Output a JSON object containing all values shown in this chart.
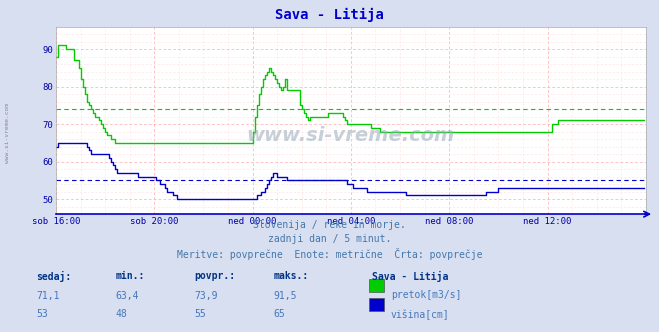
{
  "title": "Sava - Litija",
  "title_color": "#0000cc",
  "bg_color": "#d8dff0",
  "plot_bg_color": "#ffffff",
  "grid_color_major": "#ffaaaa",
  "grid_color_minor": "#ffdddd",
  "text_color": "#0000aa",
  "watermark": "www.si-vreme.com",
  "subtitle1": "Slovenija / reke in morje.",
  "subtitle2": "zadnji dan / 5 minut.",
  "subtitle3": "Meritve: povprečne  Enote: metrične  Črta: povprečje",
  "xlim": [
    0,
    288
  ],
  "ylim": [
    46,
    96
  ],
  "yticks": [
    50,
    60,
    70,
    80,
    90
  ],
  "xtick_labels": [
    "sob 16:00",
    "sob 20:00",
    "ned 00:00",
    "ned 04:00",
    "ned 08:00",
    "ned 12:00"
  ],
  "xtick_positions": [
    0,
    48,
    96,
    144,
    192,
    240
  ],
  "avg_green": 73.9,
  "avg_blue": 55.0,
  "legend_title": "Sava - Litija",
  "legend_green": "pretok[m3/s]",
  "legend_blue": "višina[cm]",
  "stat_headers": [
    "sedaj:",
    "min.:",
    "povpr.:",
    "maks.:"
  ],
  "stat_green": [
    "71,1",
    "63,4",
    "73,9",
    "91,5"
  ],
  "stat_blue": [
    "53",
    "48",
    "55",
    "65"
  ],
  "green_color": "#00cc00",
  "blue_color": "#0000cc",
  "green_data": [
    88,
    91,
    91,
    91,
    91,
    90,
    90,
    90,
    90,
    87,
    87,
    85,
    82,
    80,
    78,
    76,
    75,
    74,
    73,
    72,
    72,
    71,
    70,
    69,
    68,
    67,
    67,
    66,
    66,
    65,
    65,
    65,
    65,
    65,
    65,
    65,
    65,
    65,
    65,
    65,
    65,
    65,
    65,
    65,
    65,
    65,
    65,
    65,
    65,
    65,
    65,
    65,
    65,
    65,
    65,
    65,
    65,
    65,
    65,
    65,
    65,
    65,
    65,
    65,
    65,
    65,
    65,
    65,
    65,
    65,
    65,
    65,
    65,
    65,
    65,
    65,
    65,
    65,
    65,
    65,
    65,
    65,
    65,
    65,
    65,
    65,
    65,
    65,
    65,
    65,
    65,
    65,
    65,
    65,
    65,
    65,
    68,
    72,
    75,
    78,
    80,
    82,
    83,
    84,
    85,
    84,
    83,
    82,
    81,
    80,
    79,
    80,
    82,
    79,
    79,
    79,
    79,
    79,
    79,
    75,
    74,
    73,
    72,
    71,
    72,
    72,
    72,
    72,
    72,
    72,
    72,
    72,
    72,
    73,
    73,
    73,
    73,
    73,
    73,
    73,
    72,
    71,
    70,
    70,
    70,
    70,
    70,
    70,
    70,
    70,
    70,
    70,
    70,
    70,
    69,
    69,
    69,
    69,
    68,
    68,
    68,
    68,
    68,
    68,
    68,
    68,
    68,
    68,
    68,
    68,
    68,
    68,
    68,
    68,
    68,
    68,
    68,
    68,
    68,
    68,
    68,
    68,
    68,
    68,
    68,
    68,
    68,
    68,
    68,
    68,
    68,
    68,
    68,
    68,
    68,
    68,
    68,
    68,
    68,
    68,
    68,
    68,
    68,
    68,
    68,
    68,
    68,
    68,
    68,
    68,
    68,
    68,
    68,
    68,
    68,
    68,
    68,
    68,
    68,
    68,
    68,
    68,
    68,
    68,
    68,
    68,
    68,
    68,
    68,
    68,
    68,
    68,
    68,
    68,
    68,
    68,
    68,
    68,
    68,
    68,
    68,
    68,
    70,
    70,
    70,
    71,
    71,
    71,
    71,
    71,
    71,
    71,
    71,
    71,
    71,
    71,
    71,
    71,
    71,
    71,
    71,
    71,
    71,
    71,
    71,
    71,
    71,
    71,
    71,
    71,
    71,
    71,
    71,
    71,
    71,
    71,
    71,
    71,
    71,
    71,
    71,
    71,
    71,
    71,
    71,
    71,
    71,
    71
  ],
  "blue_data": [
    64,
    65,
    65,
    65,
    65,
    65,
    65,
    65,
    65,
    65,
    65,
    65,
    65,
    65,
    65,
    64,
    63,
    62,
    62,
    62,
    62,
    62,
    62,
    62,
    62,
    62,
    61,
    60,
    59,
    58,
    57,
    57,
    57,
    57,
    57,
    57,
    57,
    57,
    57,
    57,
    56,
    56,
    56,
    56,
    56,
    56,
    56,
    56,
    56,
    55,
    55,
    54,
    54,
    53,
    52,
    52,
    52,
    51,
    51,
    50,
    50,
    50,
    50,
    50,
    50,
    50,
    50,
    50,
    50,
    50,
    50,
    50,
    50,
    50,
    50,
    50,
    50,
    50,
    50,
    50,
    50,
    50,
    50,
    50,
    50,
    50,
    50,
    50,
    50,
    50,
    50,
    50,
    50,
    50,
    50,
    50,
    50,
    50,
    51,
    51,
    52,
    52,
    53,
    54,
    55,
    56,
    57,
    57,
    56,
    56,
    56,
    56,
    56,
    55,
    55,
    55,
    55,
    55,
    55,
    55,
    55,
    55,
    55,
    55,
    55,
    55,
    55,
    55,
    55,
    55,
    55,
    55,
    55,
    55,
    55,
    55,
    55,
    55,
    55,
    55,
    55,
    55,
    54,
    54,
    54,
    53,
    53,
    53,
    53,
    53,
    53,
    53,
    52,
    52,
    52,
    52,
    52,
    52,
    52,
    52,
    52,
    52,
    52,
    52,
    52,
    52,
    52,
    52,
    52,
    52,
    52,
    51,
    51,
    51,
    51,
    51,
    51,
    51,
    51,
    51,
    51,
    51,
    51,
    51,
    51,
    51,
    51,
    51,
    51,
    51,
    51,
    51,
    51,
    51,
    51,
    51,
    51,
    51,
    51,
    51,
    51,
    51,
    51,
    51,
    51,
    51,
    51,
    51,
    51,
    51,
    52,
    52,
    52,
    52,
    52,
    52,
    53,
    53,
    53,
    53,
    53,
    53,
    53,
    53,
    53,
    53,
    53,
    53,
    53,
    53,
    53,
    53,
    53,
    53,
    53,
    53,
    53,
    53,
    53,
    53,
    53,
    53,
    53,
    53,
    53,
    53,
    53,
    53,
    53,
    53,
    53,
    53,
    53,
    53,
    53,
    53,
    53,
    53,
    53,
    53,
    53,
    53,
    53,
    53,
    53,
    53,
    53,
    53,
    53,
    53,
    53,
    53,
    53,
    53,
    53,
    53,
    53,
    53,
    53,
    53,
    53,
    53,
    53,
    53,
    53,
    53,
    53,
    53
  ]
}
